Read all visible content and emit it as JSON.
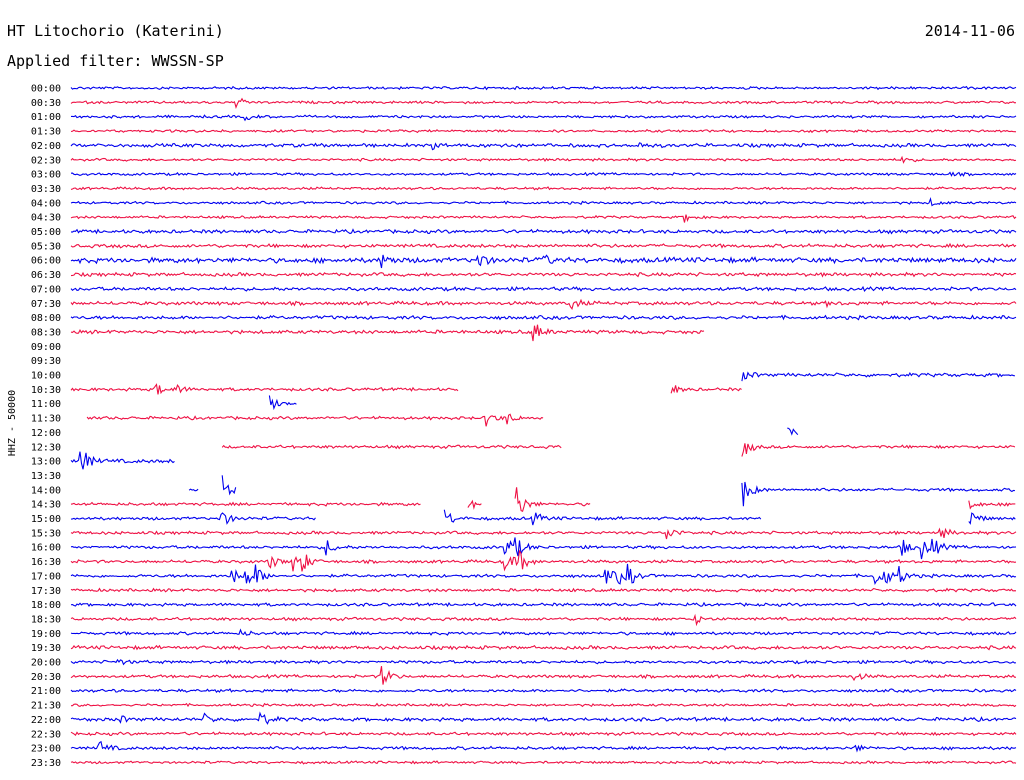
{
  "header": {
    "station": "HT Litochorio (Katerini)",
    "date": "2014-11-06",
    "filter": "Applied filter: WWSSN-SP"
  },
  "chart_data": {
    "type": "line",
    "subtype": "helicorder",
    "ylabel": "HHZ - 50000",
    "colors": {
      "odd": "#0000ee",
      "even": "#ee1144"
    },
    "rows": [
      {
        "label": "00:00",
        "segments": [
          [
            0,
            100
          ]
        ],
        "events": [],
        "noise": 1
      },
      {
        "label": "00:30",
        "segments": [
          [
            0,
            100
          ]
        ],
        "events": [
          [
            17.5,
            5
          ]
        ],
        "noise": 1
      },
      {
        "label": "01:00",
        "segments": [
          [
            0,
            100
          ]
        ],
        "events": [
          [
            18.5,
            3
          ]
        ],
        "noise": 1
      },
      {
        "label": "01:30",
        "segments": [
          [
            0,
            100
          ]
        ],
        "events": [],
        "noise": 1
      },
      {
        "label": "02:00",
        "segments": [
          [
            0,
            100
          ]
        ],
        "events": [
          [
            38,
            4
          ],
          [
            45,
            3
          ],
          [
            60,
            3
          ]
        ],
        "noise": 1.4
      },
      {
        "label": "02:30",
        "segments": [
          [
            0,
            100
          ]
        ],
        "events": [
          [
            88,
            3
          ]
        ],
        "noise": 1
      },
      {
        "label": "03:00",
        "segments": [
          [
            0,
            100
          ]
        ],
        "events": [
          [
            93,
            2
          ]
        ],
        "noise": 1
      },
      {
        "label": "03:30",
        "segments": [
          [
            0,
            100
          ]
        ],
        "events": [],
        "noise": 1
      },
      {
        "label": "04:00",
        "segments": [
          [
            0,
            100
          ]
        ],
        "events": [
          [
            91,
            3
          ]
        ],
        "noise": 1
      },
      {
        "label": "04:30",
        "segments": [
          [
            0,
            100
          ]
        ],
        "events": [
          [
            65,
            5
          ]
        ],
        "noise": 1
      },
      {
        "label": "05:00",
        "segments": [
          [
            0,
            100
          ]
        ],
        "events": [],
        "noise": 1.4
      },
      {
        "label": "05:30",
        "segments": [
          [
            0,
            100
          ]
        ],
        "events": [],
        "noise": 1.4
      },
      {
        "label": "06:00",
        "segments": [
          [
            0,
            100
          ]
        ],
        "events": [
          [
            33,
            6
          ],
          [
            43,
            9
          ],
          [
            50,
            5
          ]
        ],
        "noise": 2
      },
      {
        "label": "06:30",
        "segments": [
          [
            0,
            100
          ]
        ],
        "events": [],
        "noise": 1.4
      },
      {
        "label": "07:00",
        "segments": [
          [
            0,
            100
          ]
        ],
        "events": [],
        "noise": 1.4
      },
      {
        "label": "07:30",
        "segments": [
          [
            0,
            100
          ]
        ],
        "events": [
          [
            53,
            6
          ],
          [
            80,
            3
          ]
        ],
        "noise": 1.4
      },
      {
        "label": "08:00",
        "segments": [
          [
            0,
            100
          ]
        ],
        "events": [],
        "noise": 1.4
      },
      {
        "label": "08:30",
        "segments": [
          [
            0,
            67
          ]
        ],
        "events": [
          [
            49,
            10
          ]
        ],
        "noise": 1.4
      },
      {
        "label": "09:00",
        "segments": [],
        "events": [],
        "noise": 1
      },
      {
        "label": "09:30",
        "segments": [],
        "events": [],
        "noise": 1
      },
      {
        "label": "10:00",
        "segments": [
          [
            71,
            100
          ]
        ],
        "events": [
          [
            71,
            6
          ]
        ],
        "noise": 1.4
      },
      {
        "label": "10:30",
        "segments": [
          [
            0,
            41
          ],
          [
            63.5,
            71
          ]
        ],
        "events": [
          [
            9,
            6
          ],
          [
            11,
            5
          ],
          [
            63.5,
            6
          ]
        ],
        "noise": 1.2
      },
      {
        "label": "11:00",
        "segments": [
          [
            21,
            24
          ]
        ],
        "events": [
          [
            21,
            7
          ]
        ],
        "noise": 1.5
      },
      {
        "label": "11:30",
        "segments": [
          [
            1.7,
            50
          ]
        ],
        "events": [
          [
            44,
            8
          ],
          [
            46,
            6
          ]
        ],
        "noise": 1.2
      },
      {
        "label": "12:00",
        "segments": [
          [
            75.8,
            77
          ]
        ],
        "events": [
          [
            75.8,
            5
          ]
        ],
        "noise": 1.2
      },
      {
        "label": "12:30",
        "segments": [
          [
            16,
            52
          ],
          [
            71,
            100
          ]
        ],
        "events": [
          [
            71,
            12
          ]
        ],
        "noise": 1.2
      },
      {
        "label": "13:00",
        "segments": [
          [
            0,
            11
          ]
        ],
        "events": [
          [
            1,
            16
          ]
        ],
        "noise": 1.5
      },
      {
        "label": "13:30",
        "segments": [],
        "events": [],
        "noise": 1
      },
      {
        "label": "14:00",
        "segments": [
          [
            12.5,
            13.5
          ],
          [
            16,
            17.5
          ],
          [
            71,
            100
          ]
        ],
        "events": [
          [
            16,
            14
          ],
          [
            71,
            20
          ]
        ],
        "noise": 1.2
      },
      {
        "label": "14:30",
        "segments": [
          [
            0,
            37
          ],
          [
            42,
            43.5
          ],
          [
            47,
            55
          ],
          [
            95,
            100
          ]
        ],
        "events": [
          [
            47,
            22
          ],
          [
            42,
            5
          ],
          [
            95,
            5
          ]
        ],
        "noise": 1.2
      },
      {
        "label": "15:00",
        "segments": [
          [
            0,
            26
          ],
          [
            39.5,
            73
          ],
          [
            95,
            100
          ]
        ],
        "events": [
          [
            16,
            8
          ],
          [
            39.5,
            10
          ],
          [
            49,
            6
          ],
          [
            95,
            10
          ]
        ],
        "noise": 1.2
      },
      {
        "label": "15:30",
        "segments": [
          [
            0,
            100
          ]
        ],
        "events": [
          [
            63,
            8
          ],
          [
            92,
            6
          ]
        ],
        "noise": 1.2
      },
      {
        "label": "16:00",
        "segments": [
          [
            0,
            100
          ]
        ],
        "events": [
          [
            27,
            8
          ],
          [
            46,
            10
          ],
          [
            47,
            10
          ],
          [
            88,
            8
          ],
          [
            90,
            10
          ],
          [
            91,
            10
          ]
        ],
        "noise": 1.2
      },
      {
        "label": "16:30",
        "segments": [
          [
            0,
            100
          ]
        ],
        "events": [
          [
            21,
            8
          ],
          [
            23.5,
            9
          ],
          [
            24.5,
            9
          ],
          [
            46,
            10
          ],
          [
            47.5,
            10
          ]
        ],
        "noise": 1.2
      },
      {
        "label": "17:00",
        "segments": [
          [
            0,
            100
          ]
        ],
        "events": [
          [
            17,
            9
          ],
          [
            18.5,
            9
          ],
          [
            19.5,
            9
          ],
          [
            56.5,
            9
          ],
          [
            57.8,
            9
          ],
          [
            59,
            9
          ],
          [
            85,
            9
          ],
          [
            86,
            9
          ],
          [
            87.5,
            9
          ]
        ],
        "noise": 1.2
      },
      {
        "label": "17:30",
        "segments": [
          [
            0,
            100
          ]
        ],
        "events": [],
        "noise": 1.2
      },
      {
        "label": "18:00",
        "segments": [
          [
            0,
            100
          ]
        ],
        "events": [],
        "noise": 1.2
      },
      {
        "label": "18:30",
        "segments": [
          [
            0,
            100
          ]
        ],
        "events": [
          [
            66,
            5
          ]
        ],
        "noise": 1.2
      },
      {
        "label": "19:00",
        "segments": [
          [
            0,
            100
          ]
        ],
        "events": [
          [
            18,
            3
          ]
        ],
        "noise": 1.2
      },
      {
        "label": "19:30",
        "segments": [
          [
            0,
            100
          ]
        ],
        "events": [],
        "noise": 1.4
      },
      {
        "label": "20:00",
        "segments": [
          [
            0,
            100
          ]
        ],
        "events": [
          [
            5,
            3
          ]
        ],
        "noise": 1.2
      },
      {
        "label": "20:30",
        "segments": [
          [
            0,
            100
          ]
        ],
        "events": [
          [
            33,
            10
          ],
          [
            83,
            4
          ]
        ],
        "noise": 1.2
      },
      {
        "label": "21:00",
        "segments": [
          [
            0,
            100
          ]
        ],
        "events": [],
        "noise": 1.2
      },
      {
        "label": "21:30",
        "segments": [
          [
            0,
            100
          ]
        ],
        "events": [],
        "noise": 1
      },
      {
        "label": "22:00",
        "segments": [
          [
            0,
            100
          ]
        ],
        "events": [
          [
            5,
            4
          ],
          [
            14,
            5
          ],
          [
            20,
            8
          ]
        ],
        "noise": 1.4
      },
      {
        "label": "22:30",
        "segments": [
          [
            0,
            100
          ]
        ],
        "events": [],
        "noise": 1.2
      },
      {
        "label": "23:00",
        "segments": [
          [
            0,
            100
          ]
        ],
        "events": [
          [
            3,
            7
          ],
          [
            83,
            3
          ]
        ],
        "noise": 1.2
      },
      {
        "label": "23:30",
        "segments": [
          [
            0,
            100
          ]
        ],
        "events": [],
        "noise": 1
      }
    ]
  }
}
